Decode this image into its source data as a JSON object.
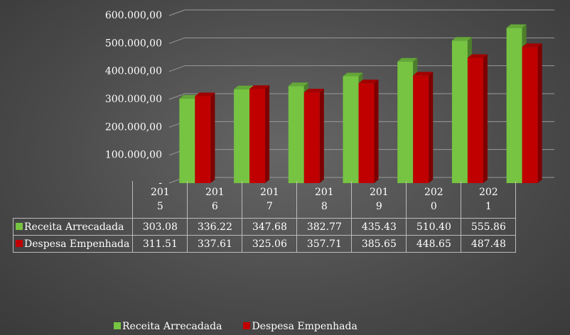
{
  "chart_data": {
    "type": "bar",
    "categories": [
      "2015",
      "2016",
      "2017",
      "2018",
      "2019",
      "2020",
      "2021"
    ],
    "series": [
      {
        "name": "Receita Arrecadada",
        "color": "#76c442",
        "values": [
          303080,
          336220,
          347680,
          382770,
          435430,
          510400,
          555860
        ],
        "value_labels": [
          "303.08",
          "336.22",
          "347.68",
          "382.77",
          "435.43",
          "510.40",
          "555.86"
        ]
      },
      {
        "name": "Despesa Empenhada",
        "color": "#c00000",
        "values": [
          311510,
          337610,
          325060,
          357710,
          385650,
          448650,
          487480
        ],
        "value_labels": [
          "311.51",
          "337.61",
          "325.06",
          "357.71",
          "385.65",
          "448.65",
          "487.48"
        ]
      }
    ],
    "ylim": [
      0,
      600000
    ],
    "yticks": [
      {
        "value": 0,
        "label": "-"
      },
      {
        "value": 100000,
        "label": "100.000,00"
      },
      {
        "value": 200000,
        "label": "200.000,00"
      },
      {
        "value": 300000,
        "label": "300.000,00"
      },
      {
        "value": 400000,
        "label": "400.000,00"
      },
      {
        "value": 500000,
        "label": "500.000,00"
      },
      {
        "value": 600000,
        "label": "600.000,00"
      }
    ],
    "grid": true,
    "legend": "bottom"
  }
}
